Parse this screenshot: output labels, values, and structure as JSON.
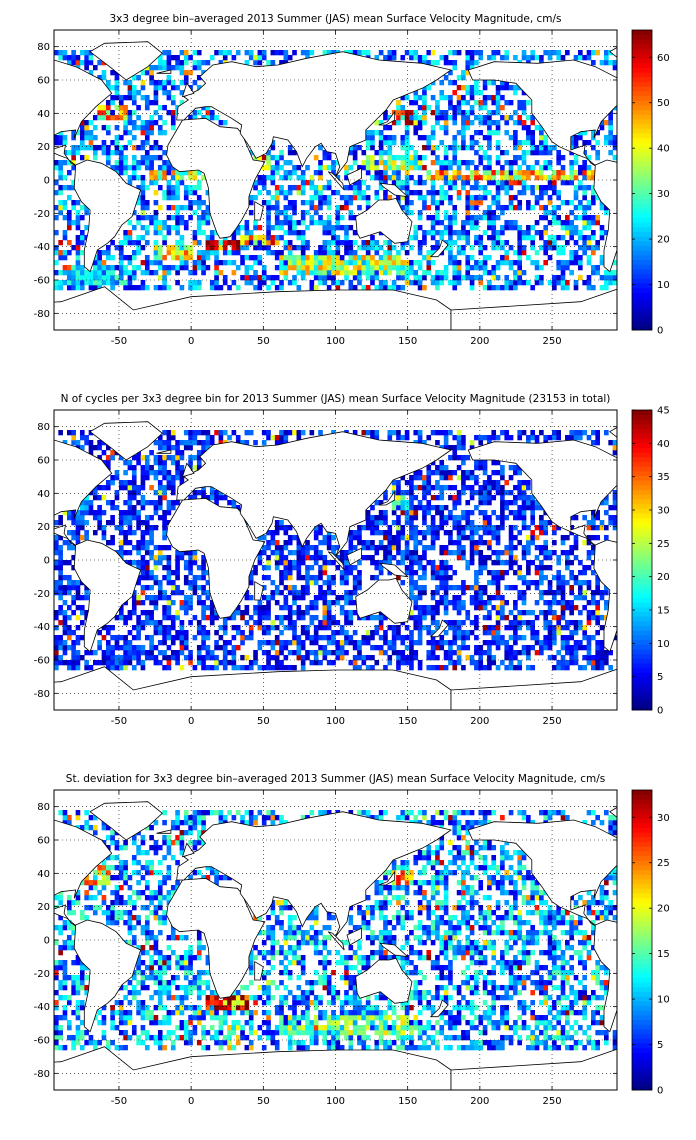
{
  "chart_data": [
    {
      "type": "heatmap",
      "title": "3x3 degree bin–averaged 2013 Summer (JAS) mean Surface Velocity Magnitude, cm/s",
      "xlim": [
        -95,
        295
      ],
      "ylim": [
        -90,
        90
      ],
      "xticks": [
        -50,
        0,
        50,
        100,
        150,
        200,
        250
      ],
      "yticks": [
        -80,
        -60,
        -40,
        -20,
        0,
        20,
        40,
        60,
        80
      ],
      "grid": "dotted",
      "colormap": "jet",
      "colorbar": {
        "min": 0,
        "max": 66,
        "ticks": [
          0,
          10,
          20,
          30,
          40,
          50,
          60
        ]
      },
      "bin_size_deg": 3,
      "seed": 17,
      "regimes": [
        {
          "lon": [
            -85,
            -45
          ],
          "lat": [
            -62,
            -50
          ],
          "value": 24
        },
        {
          "lon": [
            10,
            35
          ],
          "lat": [
            -42,
            -36
          ],
          "value": 62
        },
        {
          "lon": [
            35,
            55
          ],
          "lat": [
            -40,
            -32
          ],
          "value": 52
        },
        {
          "lon": [
            -25,
            0
          ],
          "lat": [
            -48,
            -40
          ],
          "value": 42
        },
        {
          "lon": [
            60,
            150
          ],
          "lat": [
            -56,
            -44
          ],
          "value": 38
        },
        {
          "lon": [
            140,
            155
          ],
          "lat": [
            34,
            42
          ],
          "value": 58
        },
        {
          "lon": [
            -65,
            -45
          ],
          "lat": [
            36,
            44
          ],
          "value": 44
        },
        {
          "lon": [
            40,
            55
          ],
          "lat": [
            5,
            14
          ],
          "value": 50
        },
        {
          "lon": [
            160,
            290
          ],
          "lat": [
            0,
            6
          ],
          "value": 45
        },
        {
          "lon": [
            -30,
            10
          ],
          "lat": [
            0,
            6
          ],
          "value": 40
        },
        {
          "lon": [
            120,
            160
          ],
          "lat": [
            5,
            15
          ],
          "value": 36
        }
      ],
      "base_value": 16,
      "background_coverage": 0.55
    },
    {
      "type": "heatmap",
      "title": "N of cycles per 3x3 degree bin for 2013 Summer (JAS) mean Surface Velocity Magnitude (23153 in total)",
      "xlim": [
        -95,
        295
      ],
      "ylim": [
        -90,
        90
      ],
      "xticks": [
        -50,
        0,
        50,
        100,
        150,
        200,
        250
      ],
      "yticks": [
        -80,
        -60,
        -40,
        -20,
        0,
        20,
        40,
        60,
        80
      ],
      "grid": "dotted",
      "colormap": "jet",
      "colorbar": {
        "min": 0,
        "max": 45,
        "ticks": [
          0,
          5,
          10,
          15,
          20,
          25,
          30,
          35,
          40,
          45
        ]
      },
      "bin_size_deg": 3,
      "seed": 29,
      "regimes": [
        {
          "lon": [
            -60,
            -40
          ],
          "lat": [
            -62,
            -50
          ],
          "value": 9
        },
        {
          "lon": [
            140,
            150
          ],
          "lat": [
            30,
            40
          ],
          "value": 22
        },
        {
          "lon": [
            -80,
            -70
          ],
          "lat": [
            20,
            40
          ],
          "value": 14
        }
      ],
      "base_value": 7,
      "background_coverage": 0.6
    },
    {
      "type": "heatmap",
      "title": "St. deviation for 3x3 degree bin–averaged 2013 Summer (JAS) mean Surface Velocity Magnitude, cm/s",
      "xlim": [
        -95,
        295
      ],
      "ylim": [
        -90,
        90
      ],
      "xticks": [
        -50,
        0,
        50,
        100,
        150,
        200,
        250
      ],
      "yticks": [
        -80,
        -60,
        -40,
        -20,
        0,
        20,
        40,
        60,
        80
      ],
      "grid": "dotted",
      "colormap": "jet",
      "colorbar": {
        "min": 0,
        "max": 33,
        "ticks": [
          0,
          5,
          10,
          15,
          20,
          25,
          30
        ]
      },
      "bin_size_deg": 3,
      "seed": 41,
      "regimes": [
        {
          "lon": [
            10,
            40
          ],
          "lat": [
            -42,
            -34
          ],
          "value": 30
        },
        {
          "lon": [
            140,
            155
          ],
          "lat": [
            32,
            42
          ],
          "value": 26
        },
        {
          "lon": [
            -75,
            -55
          ],
          "lat": [
            34,
            44
          ],
          "value": 22
        },
        {
          "lon": [
            60,
            160
          ],
          "lat": [
            -58,
            -44
          ],
          "value": 17
        }
      ],
      "base_value": 9,
      "background_coverage": 0.55
    }
  ]
}
